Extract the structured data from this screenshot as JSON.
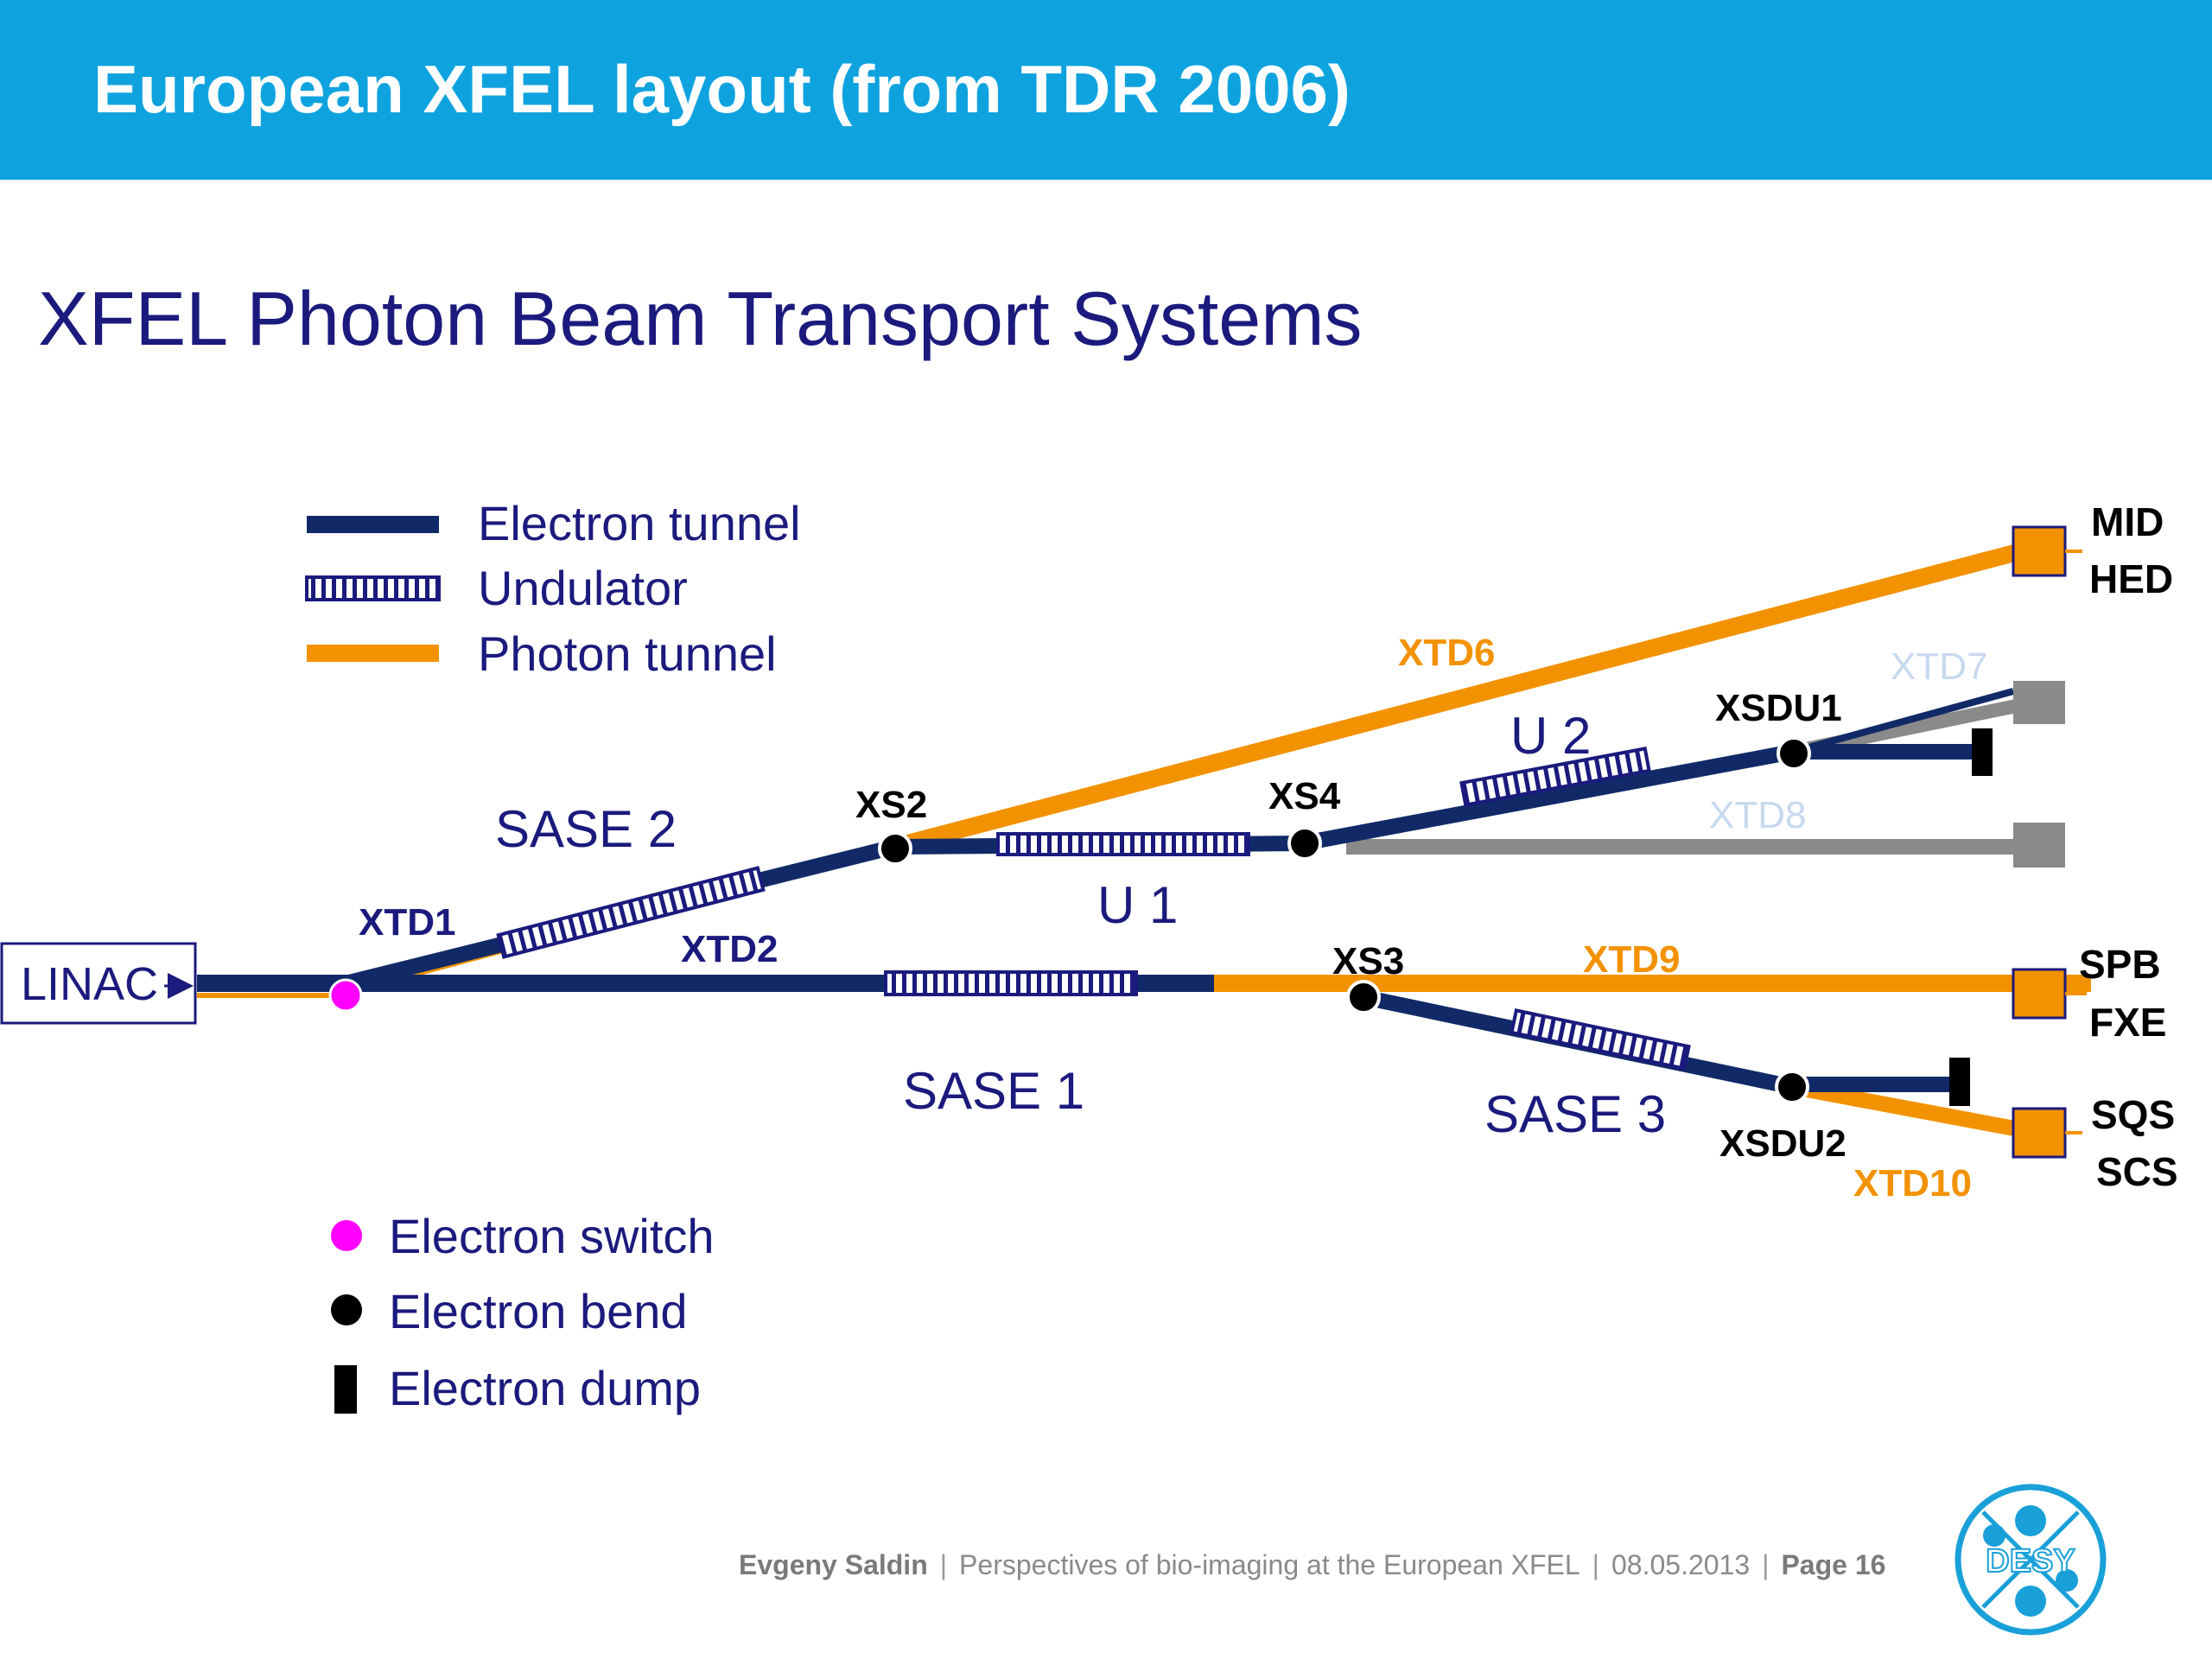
{
  "header": {
    "title": "European XFEL layout (from TDR 2006)"
  },
  "slide": {
    "subtitle": "XFEL Photon Beam Transport Systems"
  },
  "legend": {
    "lines": [
      {
        "label": "Electron tunnel",
        "style": "electron-tunnel"
      },
      {
        "label": "Undulator",
        "style": "undulator"
      },
      {
        "label": "Photon tunnel",
        "style": "photon-tunnel"
      }
    ],
    "symbols": [
      {
        "label": "Electron switch",
        "style": "switch"
      },
      {
        "label": "Electron bend",
        "style": "bend"
      },
      {
        "label": "Electron dump",
        "style": "dump"
      }
    ]
  },
  "diagram": {
    "linac": "LINAC",
    "sections": {
      "sase1": "SASE 1",
      "sase2": "SASE 2",
      "sase3": "SASE 3",
      "u1": "U 1",
      "u2": "U 2"
    },
    "tunnels": {
      "xtd1": "XTD1",
      "xtd2": "XTD2",
      "xtd6": "XTD6",
      "xtd7": "XTD7",
      "xtd8": "XTD8",
      "xtd9": "XTD9",
      "xtd10": "XTD10"
    },
    "nodes": {
      "xs2": "XS2",
      "xs3": "XS3",
      "xs4": "XS4",
      "xsdu1": "XSDU1",
      "xsdu2": "XSDU2"
    },
    "instruments": {
      "mid": "MID",
      "hed": "HED",
      "spb": "SPB",
      "fxe": "FXE",
      "sqs": "SQS",
      "scs": "SCS"
    }
  },
  "colors": {
    "header": "#0ea3df",
    "electron_tunnel": "#112a67",
    "undulator": "#1b1a7d",
    "photon_tunnel": "#f39200",
    "inactive_tunnel": "#8a8a8a",
    "inactive_label": "#c7d9ef",
    "switch": "#ff00ff",
    "text_dark": "#1b1a7d"
  },
  "footer": {
    "author": "Evgeny Saldin",
    "talk": "Perspectives of bio-imaging at the European XFEL",
    "date": "08.05.2013",
    "page": "Page 16"
  },
  "logo": {
    "text": "DESY"
  }
}
